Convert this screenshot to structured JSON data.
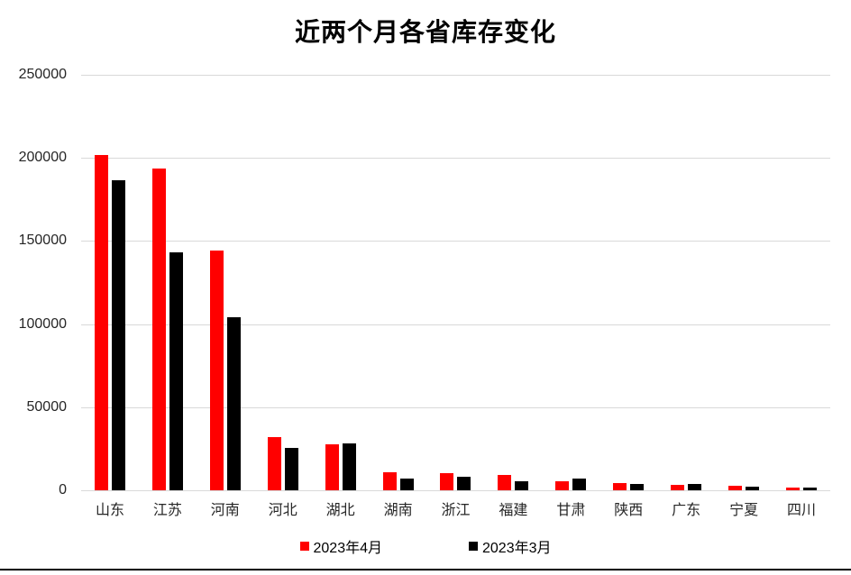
{
  "title": "近两个月各省库存变化",
  "legend": {
    "items": [
      {
        "label": "2023年4月",
        "color": "#ff0000"
      },
      {
        "label": "2023年3月",
        "color": "#000000"
      }
    ]
  },
  "colors": {
    "series_april": "#ff0000",
    "series_march": "#000000",
    "gridline": "#d9d9d9",
    "axis_text": "#262626",
    "title_text": "#000000",
    "background": "#ffffff",
    "bottom_rule": "#000000"
  },
  "chart_data": {
    "type": "bar",
    "title": "近两个月各省库存变化",
    "xlabel": "",
    "ylabel": "",
    "categories": [
      "山东",
      "江苏",
      "河南",
      "河北",
      "湖北",
      "湖南",
      "浙江",
      "福建",
      "甘肃",
      "陕西",
      "广东",
      "宁夏",
      "四川"
    ],
    "series": [
      {
        "name": "2023年4月",
        "color": "#ff0000",
        "values": [
          201500,
          193500,
          144500,
          32000,
          27500,
          11000,
          10500,
          9400,
          5500,
          4300,
          3200,
          2900,
          1800
        ]
      },
      {
        "name": "2023年3月",
        "color": "#000000",
        "values": [
          186500,
          143000,
          104000,
          25500,
          28000,
          6800,
          8200,
          5400,
          7000,
          4000,
          3600,
          2200,
          1400
        ]
      }
    ],
    "ylim": [
      0,
      250000
    ],
    "yticks": [
      0,
      50000,
      100000,
      150000,
      200000,
      250000
    ],
    "grid": true,
    "legend_position": "bottom"
  }
}
